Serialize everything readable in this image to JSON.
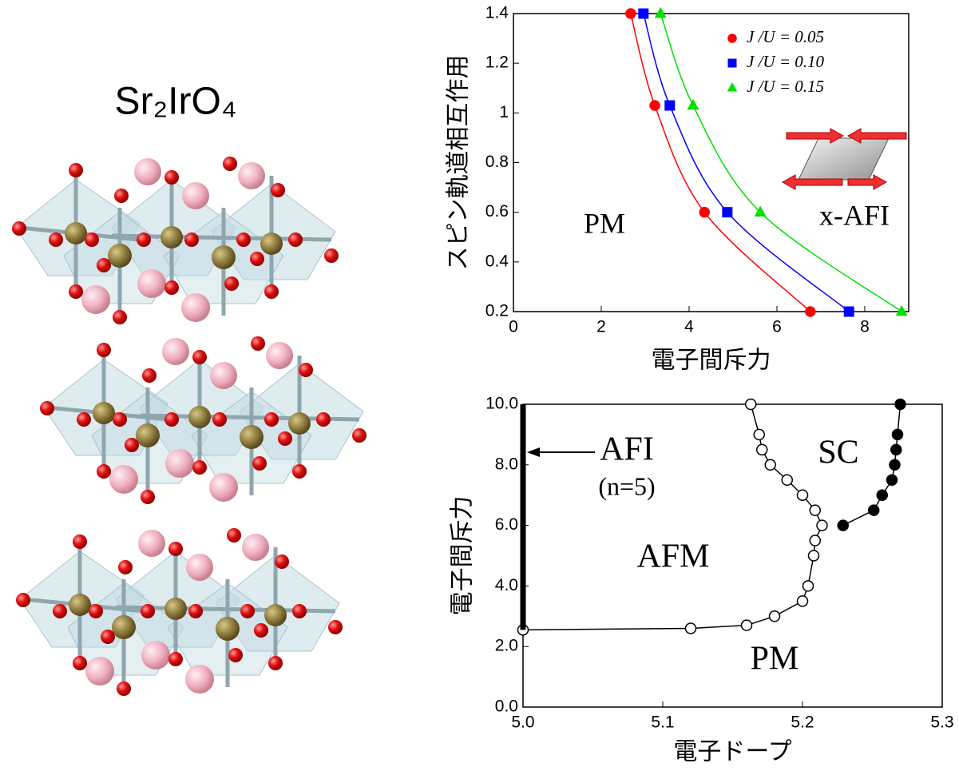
{
  "structure_label": "Sr₂IrO₄",
  "chart_data": [
    {
      "type": "line",
      "x_label": "電子間斥力",
      "y_label": "スピン軌道相互作用",
      "xlim": [
        0,
        9
      ],
      "ylim": [
        0.2,
        1.4
      ],
      "xticks": [
        0,
        2,
        4,
        6,
        8
      ],
      "yticks": [
        0.2,
        0.4,
        0.6,
        0.8,
        1,
        1.2,
        1.4
      ],
      "legend": "upper right",
      "smooth": true,
      "series": [
        {
          "name": "J /U = 0.05",
          "color": "#ff0000",
          "marker": "circle",
          "x": [
            2.67,
            3.22,
            4.35,
            6.76
          ],
          "values": [
            1.4,
            1.03,
            0.6,
            0.2
          ]
        },
        {
          "name": "J /U = 0.10",
          "color": "#0000ff",
          "marker": "square",
          "x": [
            2.96,
            3.56,
            4.87,
            7.64
          ],
          "values": [
            1.4,
            1.03,
            0.6,
            0.2
          ]
        },
        {
          "name": "J /U = 0.15",
          "color": "#00e000",
          "marker": "triangle",
          "x": [
            3.35,
            4.09,
            5.62,
            8.84
          ],
          "values": [
            1.4,
            1.03,
            0.6,
            0.2
          ]
        }
      ],
      "annotations": [
        "PM",
        "x-AFI"
      ]
    },
    {
      "type": "line",
      "x_label": "電子ドープ",
      "y_label": "電子間斥力",
      "xlim": [
        5.0,
        5.3
      ],
      "ylim": [
        0,
        10
      ],
      "xticks": [
        {
          "value": 5,
          "label": "5.0"
        },
        5.1,
        5.2,
        5.3
      ],
      "yticks": [
        {
          "value": 0,
          "label": "0.0"
        },
        {
          "value": 2,
          "label": "2.0"
        },
        {
          "value": 4,
          "label": "4.0"
        },
        {
          "value": 6,
          "label": "6.0"
        },
        {
          "value": 8,
          "label": "8.0"
        },
        {
          "value": 10,
          "label": "10.0"
        }
      ],
      "smooth": false,
      "series": [
        {
          "color": "#000000",
          "marker": "circle",
          "marker_fill": "#ffffff",
          "x": [
            5.0,
            5.12,
            5.16,
            5.18,
            5.2,
            5.204,
            5.208,
            5.209,
            5.214,
            5.209,
            5.2,
            5.189,
            5.177,
            5.171,
            5.169,
            5.163
          ],
          "values": [
            2.55,
            2.6,
            2.7,
            3.0,
            3.5,
            4.0,
            5.0,
            5.5,
            6.0,
            6.5,
            7.0,
            7.5,
            8.0,
            8.5,
            9.0,
            10.0
          ]
        },
        {
          "color": "#000000",
          "marker": "circle",
          "marker_fill": "#000000",
          "x": [
            5.229,
            5.251,
            5.257,
            5.264,
            5.266,
            5.267,
            5.268,
            5.27
          ],
          "values": [
            6.0,
            6.5,
            7.0,
            7.5,
            8.0,
            8.5,
            9.0,
            10.0
          ]
        }
      ],
      "annotations": [
        "AFI",
        "(n=5)",
        "SC",
        "AFM",
        "PM"
      ]
    }
  ]
}
